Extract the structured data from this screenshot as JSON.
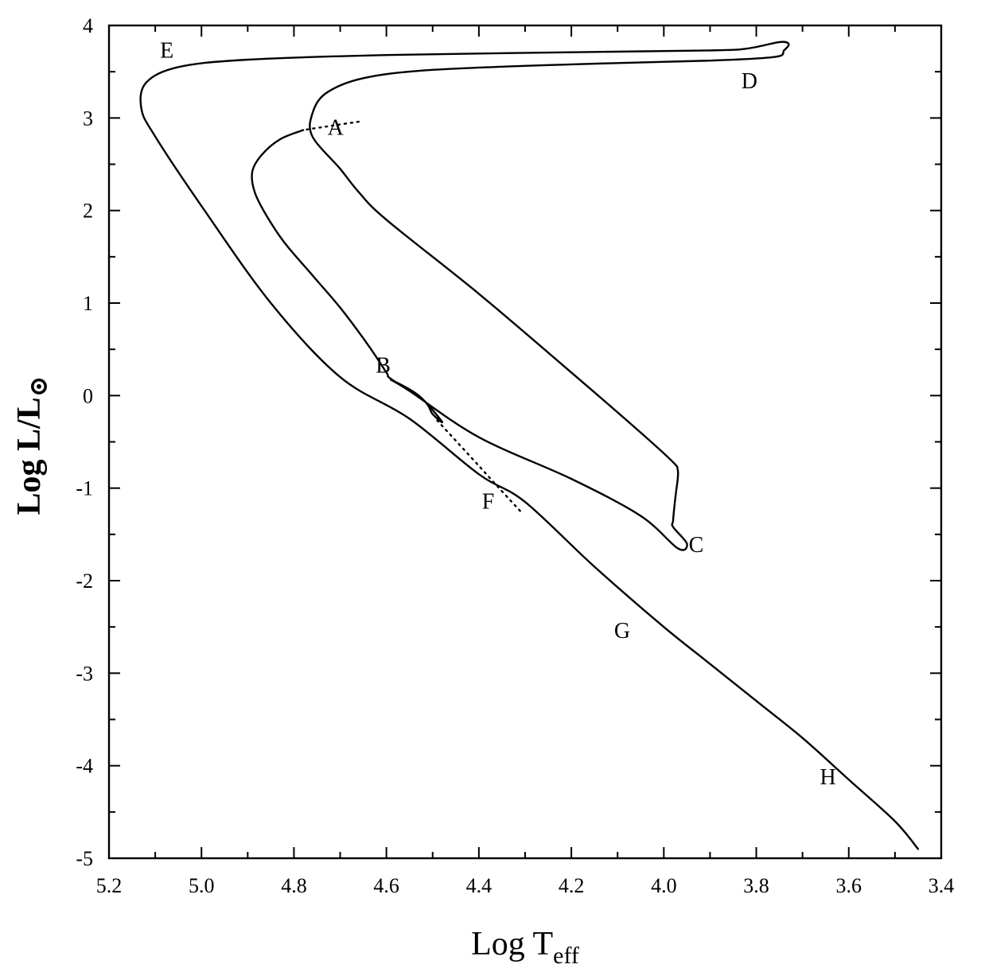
{
  "chart_data": {
    "type": "line",
    "title": "",
    "xlabel": {
      "main": "Log T",
      "sub": "eff"
    },
    "ylabel": {
      "main": "Log L/L",
      "sub": "⊙"
    },
    "xlim": [
      5.2,
      3.4
    ],
    "ylim": [
      -5,
      4
    ],
    "x_reversed": true,
    "x_ticks": [
      5.2,
      5.0,
      4.8,
      4.6,
      4.4,
      4.2,
      4.0,
      3.8,
      3.6,
      3.4
    ],
    "x_tick_labels": [
      "5.2",
      "5.0",
      "4.8",
      "4.6",
      "4.4",
      "4.2",
      "4.0",
      "3.8",
      "3.6",
      "3.4"
    ],
    "y_ticks": [
      4,
      3,
      2,
      1,
      0,
      -1,
      -2,
      -3,
      -4,
      -5
    ],
    "y_tick_labels": [
      "4",
      "3",
      "2",
      "1",
      "0",
      "-1",
      "-2",
      "-3",
      "-4",
      "-5"
    ],
    "grid": false,
    "series": [
      {
        "style": "dotted",
        "points": [
          [
            4.66,
            2.96
          ],
          [
            4.7,
            2.93
          ],
          [
            4.74,
            2.9
          ],
          [
            4.78,
            2.87
          ]
        ]
      },
      {
        "style": "solid",
        "points": [
          [
            4.78,
            2.87
          ],
          [
            4.83,
            2.77
          ],
          [
            4.87,
            2.6
          ],
          [
            4.89,
            2.42
          ],
          [
            4.885,
            2.2
          ],
          [
            4.86,
            1.95
          ],
          [
            4.82,
            1.65
          ],
          [
            4.76,
            1.3
          ],
          [
            4.7,
            0.95
          ],
          [
            4.64,
            0.55
          ],
          [
            4.6,
            0.25
          ],
          [
            4.59,
            0.18
          ],
          [
            4.52,
            -0.05
          ],
          [
            4.5,
            -0.2
          ],
          [
            4.48,
            -0.28
          ],
          [
            4.53,
            0.0
          ],
          [
            4.59,
            0.17
          ],
          [
            4.55,
            0.05
          ],
          [
            4.4,
            -0.45
          ],
          [
            4.2,
            -0.9
          ],
          [
            4.05,
            -1.3
          ],
          [
            3.97,
            -1.65
          ],
          [
            3.95,
            -1.6
          ],
          [
            3.98,
            -1.42
          ],
          [
            3.98,
            -1.35
          ],
          [
            3.975,
            -1.1
          ],
          [
            3.97,
            -0.9
          ],
          [
            3.97,
            -0.8
          ],
          [
            3.98,
            -0.72
          ],
          [
            4.05,
            -0.4
          ],
          [
            4.2,
            0.25
          ],
          [
            4.4,
            1.1
          ],
          [
            4.6,
            1.9
          ],
          [
            4.66,
            2.2
          ],
          [
            4.7,
            2.45
          ],
          [
            4.76,
            2.8
          ],
          [
            4.76,
            3.05
          ],
          [
            4.73,
            3.27
          ],
          [
            4.65,
            3.43
          ],
          [
            4.5,
            3.52
          ],
          [
            4.2,
            3.58
          ],
          [
            3.9,
            3.62
          ],
          [
            3.76,
            3.66
          ],
          [
            3.74,
            3.73
          ],
          [
            3.73,
            3.8
          ],
          [
            3.75,
            3.82
          ],
          [
            3.82,
            3.75
          ],
          [
            3.9,
            3.73
          ],
          [
            4.2,
            3.71
          ],
          [
            4.6,
            3.68
          ],
          [
            4.9,
            3.63
          ],
          [
            5.05,
            3.55
          ],
          [
            5.12,
            3.38
          ],
          [
            5.13,
            3.1
          ],
          [
            5.1,
            2.8
          ],
          [
            5.0,
            2.05
          ],
          [
            4.85,
            1.0
          ],
          [
            4.7,
            0.2
          ],
          [
            4.55,
            -0.25
          ],
          [
            4.4,
            -0.85
          ],
          [
            4.3,
            -1.15
          ],
          [
            4.15,
            -1.85
          ],
          [
            4.0,
            -2.5
          ],
          [
            3.9,
            -2.9
          ],
          [
            3.8,
            -3.3
          ],
          [
            3.7,
            -3.7
          ],
          [
            3.6,
            -4.15
          ],
          [
            3.5,
            -4.6
          ],
          [
            3.45,
            -4.9
          ]
        ]
      },
      {
        "style": "dotted",
        "points": [
          [
            4.49,
            -0.27
          ],
          [
            4.42,
            -0.65
          ],
          [
            4.36,
            -0.98
          ],
          [
            4.31,
            -1.25
          ]
        ]
      }
    ],
    "annotations": [
      {
        "text": "A",
        "x": 4.71,
        "y": 2.82
      },
      {
        "text": "B",
        "x": 4.607,
        "y": 0.25
      },
      {
        "text": "C",
        "x": 3.93,
        "y": -1.69
      },
      {
        "text": "D",
        "x": 3.815,
        "y": 3.32
      },
      {
        "text": "E",
        "x": 5.075,
        "y": 3.65
      },
      {
        "text": "F",
        "x": 4.38,
        "y": -1.22
      },
      {
        "text": "G",
        "x": 4.09,
        "y": -2.62
      },
      {
        "text": "H",
        "x": 3.645,
        "y": -4.2
      }
    ]
  }
}
